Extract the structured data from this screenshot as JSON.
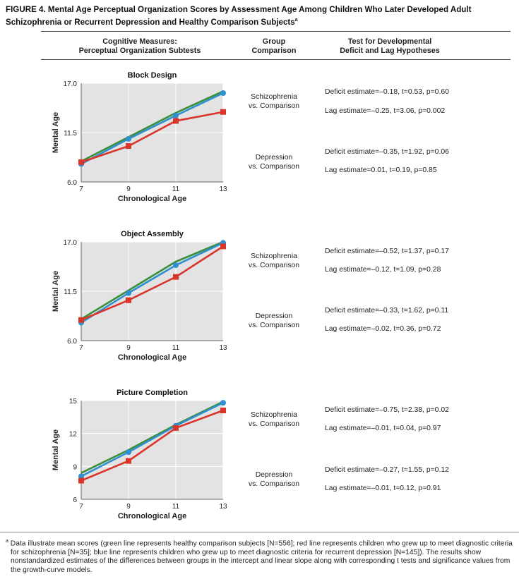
{
  "figure": {
    "title": "FIGURE 4. Mental Age Perceptual Organization Scores by Assessment Age Among Children Who Later Developed Adult Schizophrenia or Recurrent Depression and Healthy Comparison Subjects",
    "title_mark": "a"
  },
  "headers": {
    "col1_line1": "Cognitive Measures:",
    "col1_line2": "Perceptual Organization Subtests",
    "col2_line1": "Group",
    "col2_line2": "Comparison",
    "col3_line1": "Test for Developmental",
    "col3_line2": "Deficit and Lag Hypotheses"
  },
  "colors": {
    "comparison": "#3a8f3a",
    "schizophrenia": "#d9352b",
    "depression": "#2f8fcf",
    "plot_bg": "#e3e3e3"
  },
  "panels": [
    {
      "group1_line1": "Schizophrenia",
      "group1_line2": "vs. Comparison",
      "deficit1": "Deficit estimate=–0.18, t=0.53, p=0.60",
      "lag1": "Lag estimate=–0.25, t=3.06, p=0.002",
      "group2_line1": "Depression",
      "group2_line2": "vs. Comparison",
      "deficit2": "Deficit estimate=–0.35, t=1.92, p=0.06",
      "lag2": "Lag estimate=0.01, t=0.19, p=0.85"
    },
    {
      "group1_line1": "Schizophrenia",
      "group1_line2": "vs. Comparison",
      "deficit1": "Deficit estimate=–0.52, t=1.37, p=0.17",
      "lag1": "Lag estimate=–0.12, t=1.09, p=0.28",
      "group2_line1": "Depression",
      "group2_line2": "vs. Comparison",
      "deficit2": "Deficit estimate=–0.33, t=1.62, p=0.11",
      "lag2": "Lag estimate=–0.02, t=0.36, p=0.72"
    },
    {
      "group1_line1": "Schizophrenia",
      "group1_line2": "vs. Comparison",
      "deficit1": "Deficit estimate=–0.75, t=2.38, p=0.02",
      "lag1": "Lag estimate=–0.01, t=0.04, p=0.97",
      "group2_line1": "Depression",
      "group2_line2": "vs. Comparison",
      "deficit2": "Deficit estimate=–0.27, t=1.55, p=0.12",
      "lag2": "Lag estimate=–0.01, t=0.12, p=0.91"
    }
  ],
  "chart_data": [
    {
      "type": "line",
      "title": "Block Design",
      "xlabel": "Chronological Age",
      "ylabel": "Mental Age",
      "x": [
        7,
        9,
        11,
        13
      ],
      "xlim": [
        7,
        13
      ],
      "ylim": [
        6,
        17
      ],
      "yticks": [
        "6.0",
        "11.5",
        "17.0"
      ],
      "xticks": [
        "7",
        "9",
        "11",
        "13"
      ],
      "series": [
        {
          "key": "comparison",
          "values": [
            8.3,
            11.0,
            13.7,
            16.1
          ]
        },
        {
          "key": "depression",
          "values": [
            8.0,
            10.8,
            13.4,
            15.9
          ]
        },
        {
          "key": "schizophrenia",
          "values": [
            8.2,
            10.0,
            12.8,
            13.8
          ]
        }
      ]
    },
    {
      "type": "line",
      "title": "Object Assembly",
      "xlabel": "Chronological Age",
      "ylabel": "Mental Age",
      "x": [
        7,
        9,
        11,
        13
      ],
      "xlim": [
        7,
        13
      ],
      "ylim": [
        6,
        17
      ],
      "yticks": [
        "6.0",
        "11.5",
        "17.0"
      ],
      "xticks": [
        "7",
        "9",
        "11",
        "13"
      ],
      "series": [
        {
          "key": "comparison",
          "values": [
            8.4,
            11.6,
            14.8,
            17.0
          ]
        },
        {
          "key": "depression",
          "values": [
            8.0,
            11.3,
            14.4,
            16.9
          ]
        },
        {
          "key": "schizophrenia",
          "values": [
            8.3,
            10.5,
            13.1,
            16.5
          ]
        }
      ]
    },
    {
      "type": "line",
      "title": "Picture Completion",
      "xlabel": "Chronological Age",
      "ylabel": "Mental Age",
      "x": [
        7,
        9,
        11,
        13
      ],
      "xlim": [
        7,
        13
      ],
      "ylim": [
        6,
        15
      ],
      "yticks": [
        "6",
        "9",
        "12",
        "15"
      ],
      "xticks": [
        "7",
        "9",
        "11",
        "13"
      ],
      "series": [
        {
          "key": "comparison",
          "values": [
            8.4,
            10.5,
            12.8,
            14.9
          ]
        },
        {
          "key": "depression",
          "values": [
            8.1,
            10.3,
            12.7,
            14.8
          ]
        },
        {
          "key": "schizophrenia",
          "values": [
            7.7,
            9.5,
            12.5,
            14.1
          ]
        }
      ]
    }
  ],
  "footnote": {
    "mark": "a",
    "text": "Data illustrate mean scores (green line represents healthy comparison subjects [N=556]; red line represents children who grew up to meet diagnostic criteria for schizophrenia [N=35]; blue line represents children who grew up to meet diagnostic criteria for recurrent depression [N=145]). The results show nonstandardized estimates of the differences between groups in the intercept and linear slope along with corresponding t tests and significance values from the growth-curve models."
  }
}
